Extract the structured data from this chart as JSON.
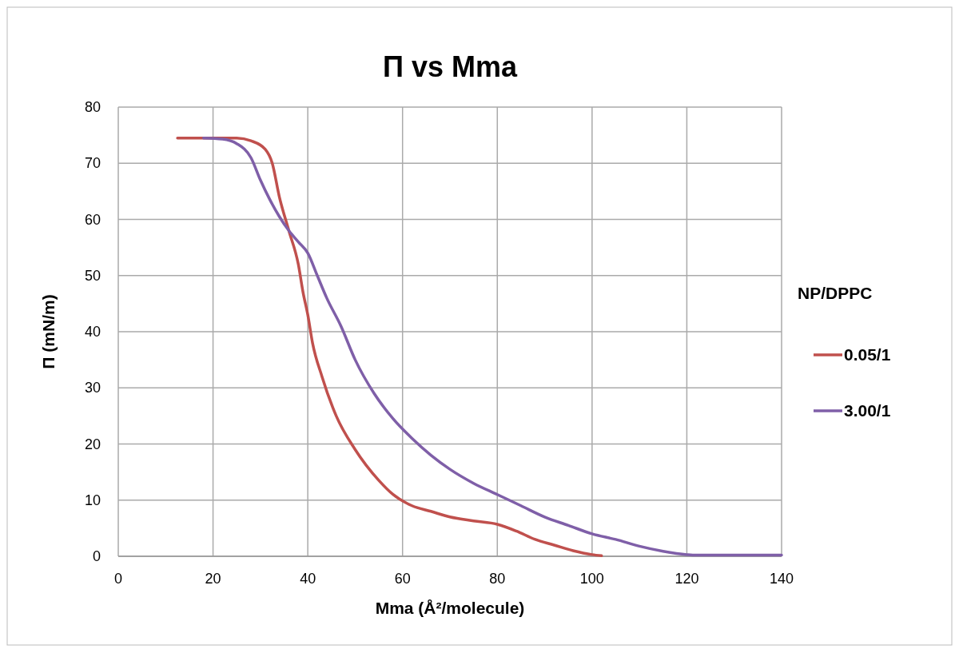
{
  "chart_data": {
    "type": "line",
    "title": "Π vs Mma",
    "xlabel": "Mma (Å²/molecule)",
    "ylabel": "Π (mN/m)",
    "legend_title": "NP/DPPC",
    "legend": "right",
    "grid": true,
    "xlim": [
      0,
      140
    ],
    "xticks": [
      0,
      20,
      40,
      60,
      80,
      100,
      120,
      140
    ],
    "ylim": [
      0,
      80
    ],
    "yticks": [
      0,
      10,
      20,
      30,
      40,
      50,
      60,
      70,
      80
    ],
    "series": [
      {
        "name": "0.05/1",
        "color": "#c0504d",
        "x": [
          12.5,
          20,
          25,
          28,
          31,
          32.5,
          34,
          36,
          38,
          39,
          40,
          41,
          43,
          46,
          50,
          55,
          58,
          62,
          66,
          70,
          75,
          80,
          84,
          88,
          92,
          96,
          100,
          102
        ],
        "values": [
          74.5,
          74.5,
          74.5,
          74,
          72.5,
          70,
          64,
          58,
          52,
          47,
          43,
          38,
          32,
          25,
          19,
          13.5,
          11,
          9,
          8,
          7,
          6.3,
          5.7,
          4.5,
          3,
          2,
          1,
          0.3,
          0.1
        ]
      },
      {
        "name": "3.00/1",
        "color": "#7f5fa8",
        "x": [
          18,
          22,
          25,
          28,
          30,
          32,
          34,
          36,
          38,
          40,
          42,
          44,
          47,
          50,
          54,
          58,
          62,
          66,
          70,
          75,
          80,
          85,
          90,
          95,
          100,
          105,
          110,
          115,
          120,
          122,
          130,
          140
        ],
        "values": [
          74.5,
          74.3,
          73.5,
          71,
          67,
          63.5,
          60.5,
          58,
          56,
          54,
          50,
          46,
          41,
          35,
          29,
          24.5,
          21,
          18,
          15.5,
          13,
          11,
          9,
          7,
          5.5,
          4,
          3,
          1.8,
          0.9,
          0.3,
          0.2,
          0.2,
          0.2
        ]
      }
    ]
  }
}
